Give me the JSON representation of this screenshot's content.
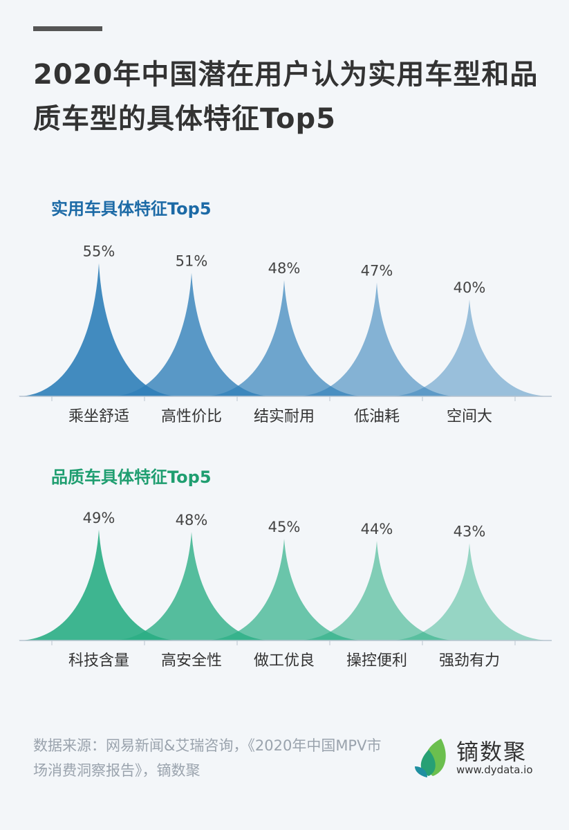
{
  "title": "2020年中国潜在用户认为实用车型和品质车型的具体特征Top5",
  "chart_data": [
    {
      "type": "area",
      "title": "实用车具体特征Top5",
      "categories": [
        "乘坐舒适",
        "高性价比",
        "结实耐用",
        "低油耗",
        "空间大"
      ],
      "values": [
        55,
        51,
        48,
        47,
        40
      ],
      "labels": [
        "55%",
        "51%",
        "48%",
        "47%",
        "40%"
      ],
      "unit": "%",
      "color": "#2f7fb8",
      "title_color": "#1c6aa6"
    },
    {
      "type": "area",
      "title": "品质车具体特征Top5",
      "categories": [
        "科技含量",
        "高安全性",
        "做工优良",
        "操控便利",
        "强劲有力"
      ],
      "values": [
        49,
        48,
        45,
        44,
        43
      ],
      "labels": [
        "49%",
        "48%",
        "45%",
        "44%",
        "43%"
      ],
      "unit": "%",
      "color": "#2aae84",
      "title_color": "#1f9e70"
    }
  ],
  "source": "数据来源：网易新闻&艾瑞咨询，《2020年中国MPV市场消费洞察报告》，镝数聚",
  "logo": {
    "name": "镝数聚",
    "url": "www.dydata.io"
  }
}
